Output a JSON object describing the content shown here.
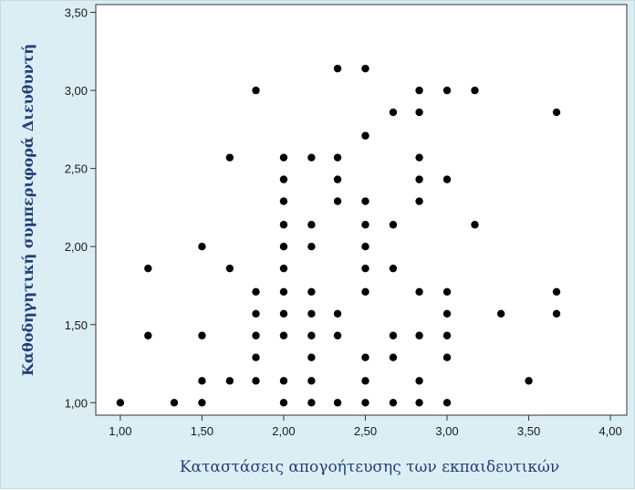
{
  "chart_data": {
    "type": "scatter",
    "xlabel": "Καταστάσεις απογοήτευσης των εκπαιδευτικών",
    "ylabel": "Καθοδηγητική συμπεριφορά Διευθυντή",
    "xlim": [
      0.85,
      4.1
    ],
    "ylim": [
      0.92,
      3.55
    ],
    "x_ticks": [
      "1,00",
      "1,50",
      "2,00",
      "2,50",
      "3,00",
      "3,50",
      "4,00"
    ],
    "x_tick_values": [
      1.0,
      1.5,
      2.0,
      2.5,
      3.0,
      3.5,
      4.0
    ],
    "y_ticks": [
      "1,00",
      "1,50",
      "2,00",
      "2,50",
      "3,00",
      "3,50"
    ],
    "y_tick_values": [
      1.0,
      1.5,
      2.0,
      2.5,
      3.0,
      3.5
    ],
    "grid": false,
    "colors": {
      "background": "#dbeef3",
      "plot_area": "#ffffff",
      "point": "#000000",
      "axis_title": "#243c7c"
    },
    "points": [
      [
        1.0,
        1.0
      ],
      [
        1.17,
        1.86
      ],
      [
        1.17,
        1.43
      ],
      [
        1.33,
        1.0
      ],
      [
        1.5,
        2.0
      ],
      [
        1.5,
        1.43
      ],
      [
        1.5,
        1.14
      ],
      [
        1.5,
        1.0
      ],
      [
        1.67,
        2.57
      ],
      [
        1.67,
        1.86
      ],
      [
        1.67,
        1.14
      ],
      [
        1.83,
        3.0
      ],
      [
        1.83,
        1.71
      ],
      [
        1.83,
        1.57
      ],
      [
        1.83,
        1.43
      ],
      [
        1.83,
        1.29
      ],
      [
        1.83,
        1.14
      ],
      [
        2.0,
        2.57
      ],
      [
        2.0,
        2.43
      ],
      [
        2.0,
        2.29
      ],
      [
        2.0,
        2.14
      ],
      [
        2.0,
        2.0
      ],
      [
        2.0,
        1.86
      ],
      [
        2.0,
        1.71
      ],
      [
        2.0,
        1.57
      ],
      [
        2.0,
        1.43
      ],
      [
        2.0,
        1.14
      ],
      [
        2.0,
        1.0
      ],
      [
        2.17,
        2.57
      ],
      [
        2.17,
        2.14
      ],
      [
        2.17,
        2.0
      ],
      [
        2.17,
        1.71
      ],
      [
        2.17,
        1.57
      ],
      [
        2.17,
        1.43
      ],
      [
        2.17,
        1.29
      ],
      [
        2.17,
        1.14
      ],
      [
        2.17,
        1.0
      ],
      [
        2.33,
        3.14
      ],
      [
        2.33,
        2.57
      ],
      [
        2.33,
        2.43
      ],
      [
        2.33,
        2.29
      ],
      [
        2.33,
        1.57
      ],
      [
        2.33,
        1.43
      ],
      [
        2.33,
        1.0
      ],
      [
        2.5,
        3.14
      ],
      [
        2.5,
        2.71
      ],
      [
        2.5,
        2.29
      ],
      [
        2.5,
        2.14
      ],
      [
        2.5,
        2.0
      ],
      [
        2.5,
        1.86
      ],
      [
        2.5,
        1.71
      ],
      [
        2.5,
        1.29
      ],
      [
        2.5,
        1.14
      ],
      [
        2.5,
        1.0
      ],
      [
        2.67,
        2.86
      ],
      [
        2.67,
        2.14
      ],
      [
        2.67,
        1.86
      ],
      [
        2.67,
        1.43
      ],
      [
        2.67,
        1.29
      ],
      [
        2.67,
        1.0
      ],
      [
        2.83,
        3.0
      ],
      [
        2.83,
        2.86
      ],
      [
        2.83,
        2.57
      ],
      [
        2.83,
        2.43
      ],
      [
        2.83,
        2.29
      ],
      [
        2.83,
        1.71
      ],
      [
        2.83,
        1.43
      ],
      [
        2.83,
        1.14
      ],
      [
        2.83,
        1.0
      ],
      [
        3.0,
        3.0
      ],
      [
        3.0,
        2.43
      ],
      [
        3.0,
        1.71
      ],
      [
        3.0,
        1.57
      ],
      [
        3.0,
        1.43
      ],
      [
        3.0,
        1.29
      ],
      [
        3.0,
        1.0
      ],
      [
        3.17,
        3.0
      ],
      [
        3.17,
        2.14
      ],
      [
        3.33,
        1.57
      ],
      [
        3.5,
        1.14
      ],
      [
        3.67,
        2.86
      ],
      [
        3.67,
        1.71
      ],
      [
        3.67,
        1.57
      ]
    ]
  }
}
